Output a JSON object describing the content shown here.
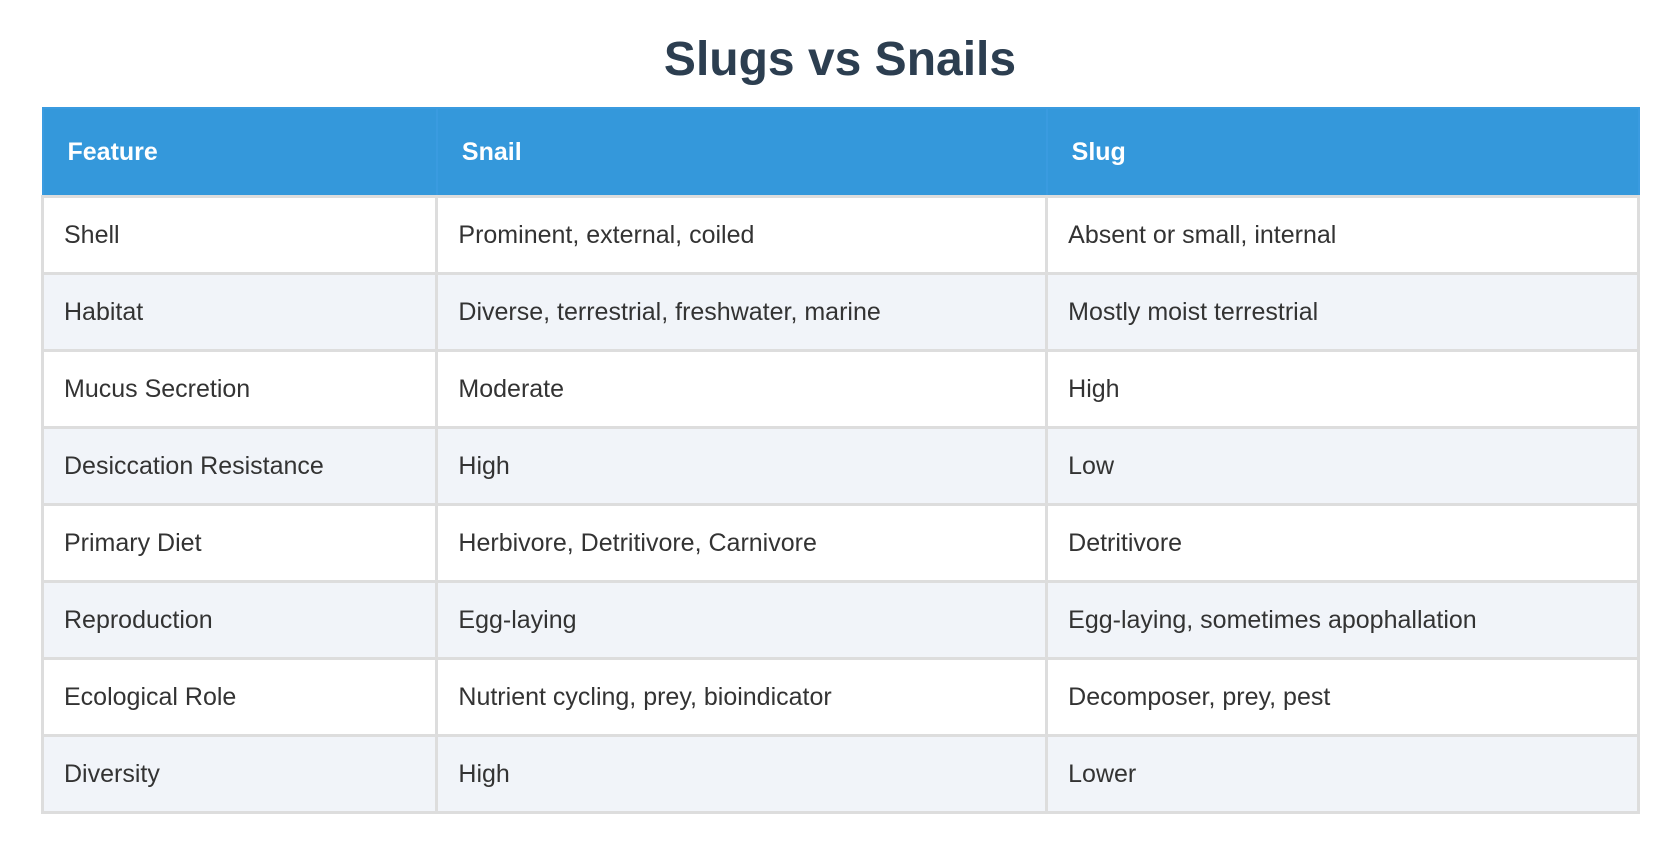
{
  "header": {
    "title": "Slugs vs Snails"
  },
  "table": {
    "columns": [
      "Feature",
      "Snail",
      "Slug"
    ],
    "rows": [
      [
        "Shell",
        "Prominent, external, coiled",
        "Absent or small, internal"
      ],
      [
        "Habitat",
        "Diverse, terrestrial, freshwater, marine",
        "Mostly moist terrestrial"
      ],
      [
        "Mucus Secretion",
        "Moderate",
        "High"
      ],
      [
        "Desiccation Resistance",
        "High",
        "Low"
      ],
      [
        "Primary Diet",
        "Herbivore, Detritivore, Carnivore",
        "Detritivore"
      ],
      [
        "Reproduction",
        "Egg-laying",
        "Egg-laying, sometimes apophallation"
      ],
      [
        "Ecological Role",
        "Nutrient cycling, prey, bioindicator",
        "Decomposer, prey, pest"
      ],
      [
        "Diversity",
        "High",
        "Lower"
      ]
    ]
  }
}
